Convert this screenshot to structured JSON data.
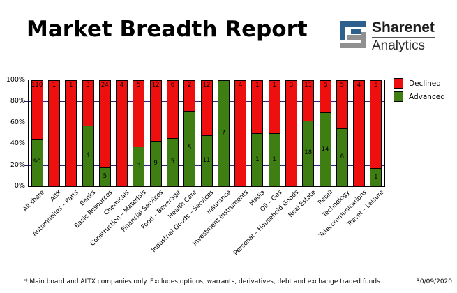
{
  "header": {
    "title": "Market Breadth Report",
    "logo": {
      "brand": "Sharenet",
      "sub": "Analytics",
      "blue": "#2d608c",
      "gray": "#909090"
    }
  },
  "legend": [
    {
      "label": "Declined",
      "color": "#ee0f0f"
    },
    {
      "label": "Advanced",
      "color": "#3e7e12"
    }
  ],
  "chart_data": {
    "type": "bar",
    "stacked": true,
    "title": "Market Breadth Report",
    "xlabel": "",
    "ylabel": "",
    "ylim": [
      0,
      100
    ],
    "y_ticks": [
      "100%",
      "80%",
      "60%",
      "40%",
      "20%",
      "0%"
    ],
    "legend_position": "top-right",
    "reference_line_pct": 50,
    "grid": {
      "lines": [
        {
          "pct": 20,
          "color": "#26267a"
        },
        {
          "pct": 40,
          "color": "#c9c9c9"
        },
        {
          "pct": 60,
          "color": "#c9c9c9"
        },
        {
          "pct": 80,
          "color": "#26267a"
        }
      ]
    },
    "categories": [
      "All share",
      "AltX",
      "Automobiles – Parts",
      "Banks",
      "Basic Resources",
      "Chemicals",
      "Construction – Materials",
      "Financial Services",
      "Food – Beverage",
      "Health Care",
      "Industrial Goods – Services",
      "Insurance",
      "Investment Instruments",
      "Media",
      "Oil – Gas",
      "Personal – Household Goods",
      "Real Estate",
      "Retail",
      "Technology",
      "Telecommunications",
      "Travel – Leisure"
    ],
    "series": [
      {
        "name": "Declined",
        "color": "#ee0f0f",
        "counts": [
          110,
          1,
          1,
          3,
          24,
          4,
          5,
          12,
          6,
          2,
          12,
          0,
          4,
          1,
          1,
          3,
          11,
          6,
          5,
          4,
          5
        ]
      },
      {
        "name": "Advanced",
        "color": "#3e7e12",
        "counts": [
          90,
          0,
          0,
          4,
          5,
          0,
          3,
          9,
          5,
          5,
          11,
          7,
          0,
          1,
          1,
          0,
          18,
          14,
          6,
          0,
          1
        ]
      }
    ]
  },
  "footnote": {
    "text": "* Main board and ALTX companies only. Excludes options, warrants, derivatives, debt and exchange traded funds",
    "date": "30/09/2020"
  }
}
